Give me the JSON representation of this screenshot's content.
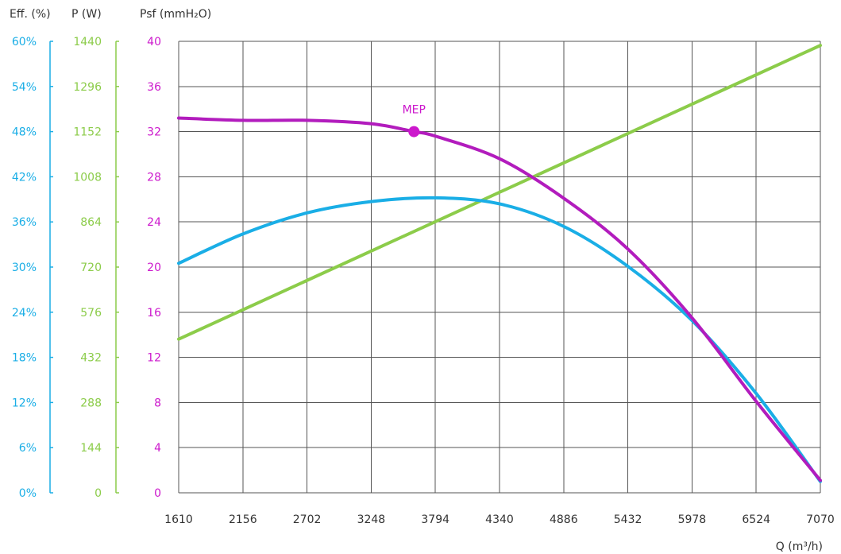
{
  "chart_data": {
    "type": "line",
    "xlabel": "Q (m³/h)",
    "x_ticks": [
      1610,
      2156,
      2702,
      3248,
      3794,
      4340,
      4886,
      5432,
      5978,
      6524,
      7070
    ],
    "axes": {
      "eff": {
        "label": "Eff. (%)",
        "ylim": [
          0,
          60
        ],
        "ticks": [
          "0%",
          "6%",
          "12%",
          "18%",
          "24%",
          "30%",
          "36%",
          "42%",
          "48%",
          "54%",
          "60%"
        ],
        "color": "#1aaee6"
      },
      "power": {
        "label": "P (W)",
        "ylim": [
          0,
          1440
        ],
        "ticks": [
          "0",
          "144",
          "288",
          "432",
          "576",
          "720",
          "864",
          "1008",
          "1152",
          "1296",
          "1440"
        ],
        "color": "#8ccc4a"
      },
      "psf": {
        "label": "Psf (mmH₂O)",
        "ylim": [
          0,
          40
        ],
        "ticks": [
          "0",
          "4",
          "8",
          "12",
          "16",
          "20",
          "24",
          "28",
          "32",
          "36",
          "40"
        ],
        "color": "#cc18cc"
      }
    },
    "grid": true,
    "series": [
      {
        "axis": "psf",
        "color": "#b21cbd",
        "x": [
          1610,
          2156,
          2702,
          3248,
          3612,
          3794,
          4340,
          4886,
          5432,
          5978,
          6524,
          7070
        ],
        "y": [
          33.2,
          33.0,
          33.0,
          32.7,
          32.0,
          31.6,
          29.6,
          26.1,
          21.6,
          15.5,
          8.1,
          1.1
        ]
      },
      {
        "axis": "eff",
        "color": "#1aaee6",
        "x": [
          1610,
          2156,
          2702,
          3248,
          3794,
          4340,
          4886,
          5432,
          5978,
          6524,
          7070
        ],
        "y": [
          30.5,
          34.4,
          37.2,
          38.7,
          39.2,
          38.4,
          35.4,
          30.1,
          22.9,
          13.2,
          1.5
        ]
      },
      {
        "axis": "power",
        "color": "#8ccc4a",
        "x": [
          1610,
          7070
        ],
        "y": [
          490,
          1427
        ]
      }
    ],
    "annotations": [
      {
        "text": "MEP",
        "x": 3612,
        "y": 32.0,
        "axis": "psf",
        "color": "#cc18cc"
      }
    ]
  }
}
